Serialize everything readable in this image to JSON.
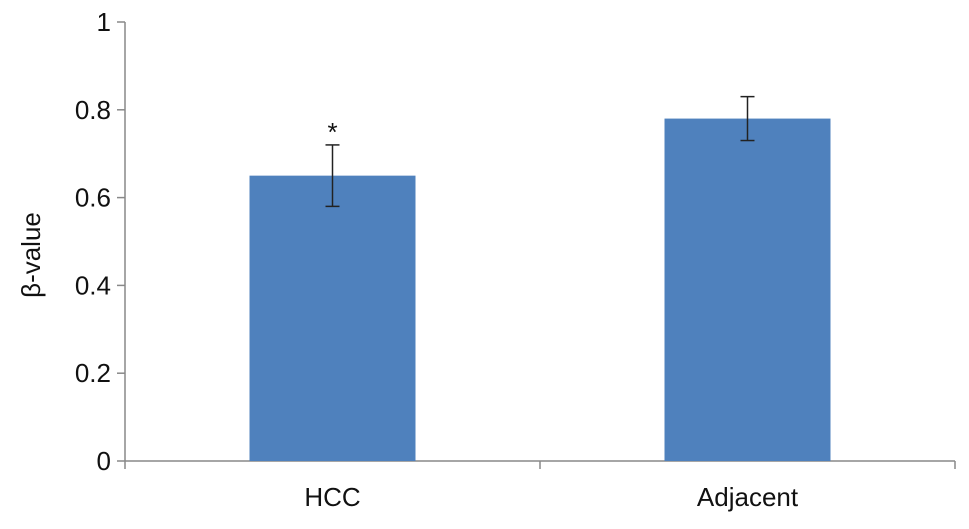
{
  "chart_data": {
    "type": "bar",
    "title": "",
    "xlabel": "",
    "ylabel": "β-value",
    "ylim": [
      0,
      1
    ],
    "yticks": [
      0,
      0.2,
      0.4,
      0.6,
      0.8,
      1
    ],
    "ytick_labels": [
      "0",
      "0.2",
      "0.4",
      "0.6",
      "0.8",
      "1"
    ],
    "categories": [
      "HCC",
      "Adjacent"
    ],
    "values": [
      0.65,
      0.78
    ],
    "error_low": [
      0.58,
      0.73
    ],
    "error_high": [
      0.72,
      0.83
    ],
    "annotations": [
      {
        "category_index": 0,
        "text": "*"
      }
    ],
    "grid": false,
    "legend": "none",
    "bar_color": "#4f81bd"
  }
}
